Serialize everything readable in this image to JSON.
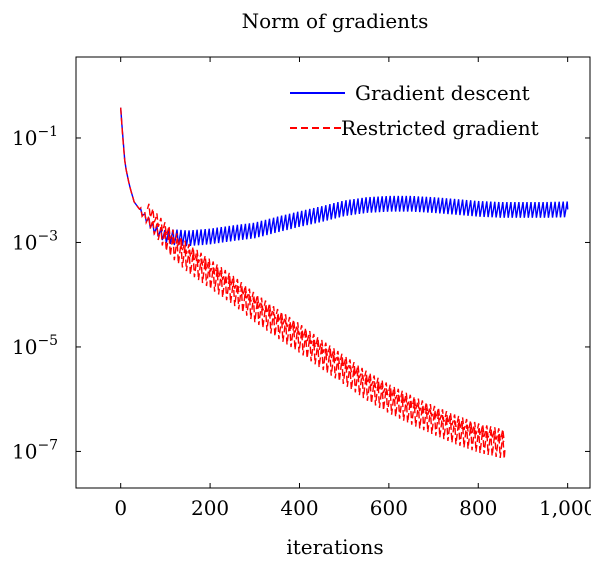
{
  "chart_data": {
    "type": "line",
    "title": "Norm of gradients",
    "xlabel": "iterations",
    "ylabel": "",
    "xlim": [
      -100,
      1050
    ],
    "ylim_log10": [
      -7.7,
      0.55
    ],
    "y_scale": "log",
    "grid": false,
    "legend_position": "top-right",
    "x_ticks": [
      {
        "value": 0,
        "label": "0"
      },
      {
        "value": 200,
        "label": "200"
      },
      {
        "value": 400,
        "label": "400"
      },
      {
        "value": 600,
        "label": "600"
      },
      {
        "value": 800,
        "label": "800"
      },
      {
        "value": 1000,
        "label": "1,000"
      }
    ],
    "y_ticks": [
      {
        "log10": -1,
        "base": "10",
        "exponent": "−1"
      },
      {
        "log10": -3,
        "base": "10",
        "exponent": "−3"
      },
      {
        "log10": -5,
        "base": "10",
        "exponent": "−5"
      },
      {
        "log10": -7,
        "base": "10",
        "exponent": "−7"
      }
    ],
    "series": [
      {
        "name": "Gradient descent",
        "color": "#0000ff",
        "style": "solid",
        "oscillation_band": [
          0.05,
          0.3
        ],
        "x": [
          0,
          5,
          10,
          20,
          30,
          50,
          75,
          100,
          150,
          200,
          250,
          300,
          350,
          400,
          450,
          500,
          550,
          600,
          650,
          700,
          750,
          800,
          850,
          900,
          950,
          1000
        ],
        "y": [
          0.38,
          0.1,
          0.03,
          0.012,
          0.006,
          0.0035,
          0.0018,
          0.0013,
          0.0012,
          0.0013,
          0.0015,
          0.0017,
          0.0022,
          0.0028,
          0.0035,
          0.0045,
          0.0052,
          0.0055,
          0.0055,
          0.0052,
          0.0048,
          0.0044,
          0.0042,
          0.0042,
          0.0042,
          0.0043
        ]
      },
      {
        "name": "Restricted gradient",
        "color": "#ff0000",
        "style": "dashed",
        "oscillation_band": [
          0.1,
          0.45
        ],
        "x": [
          0,
          5,
          10,
          20,
          30,
          50,
          75,
          100,
          150,
          200,
          250,
          300,
          350,
          400,
          450,
          500,
          550,
          600,
          650,
          700,
          750,
          800,
          860
        ],
        "y": [
          0.38,
          0.09,
          0.03,
          0.012,
          0.006,
          0.0035,
          0.0019,
          0.0011,
          0.00045,
          0.00022,
          0.00011,
          5e-05,
          2.5e-05,
          1.3e-05,
          6.3e-06,
          3.2e-06,
          1.6e-06,
          9e-07,
          5.5e-07,
          3.5e-07,
          2.3e-07,
          1.6e-07,
          1.2e-07
        ]
      }
    ]
  }
}
